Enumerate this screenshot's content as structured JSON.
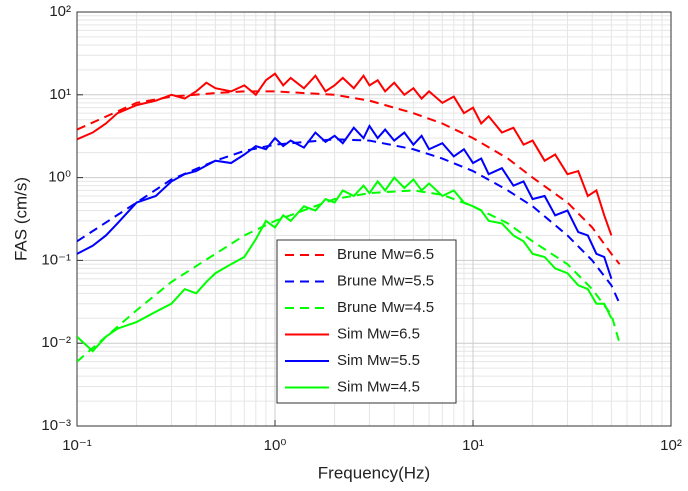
{
  "chart_data": {
    "type": "line",
    "xlabel": "Frequency(Hz)",
    "ylabel": "FAS (cm/s)",
    "xscale": "log",
    "yscale": "log",
    "grid": true,
    "minor_grid": true,
    "legend": "lower center",
    "xlim": [
      0.1,
      100
    ],
    "ylim": [
      0.001,
      100
    ],
    "xticks": [
      {
        "value": 0.1,
        "label": "10⁻¹"
      },
      {
        "value": 1,
        "label": "10⁰"
      },
      {
        "value": 10,
        "label": "10¹"
      },
      {
        "value": 100,
        "label": "10²"
      }
    ],
    "yticks": [
      {
        "value": 0.001,
        "label": "10⁻³"
      },
      {
        "value": 0.01,
        "label": "10⁻²"
      },
      {
        "value": 0.1,
        "label": "10⁻¹"
      },
      {
        "value": 1,
        "label": "10⁰"
      },
      {
        "value": 10,
        "label": "10¹"
      },
      {
        "value": 100,
        "label": "10²"
      }
    ],
    "series": [
      {
        "name": "Brune Mw=6.5",
        "color": "#ff0000",
        "linestyle": "dashed",
        "x": [
          0.1,
          0.2,
          0.3,
          0.5,
          0.7,
          1,
          2,
          3,
          5,
          7,
          10,
          15,
          20,
          30,
          40,
          50,
          55
        ],
        "values": [
          3.8,
          8,
          9.5,
          10.5,
          11,
          11,
          10,
          8.5,
          6,
          4.5,
          3,
          1.7,
          1,
          0.5,
          0.25,
          0.12,
          0.09
        ]
      },
      {
        "name": "Brune Mw=5.5",
        "color": "#0000ff",
        "linestyle": "dashed",
        "x": [
          0.1,
          0.2,
          0.3,
          0.5,
          0.7,
          1,
          2,
          3,
          5,
          7,
          10,
          15,
          20,
          30,
          40,
          50,
          55
        ],
        "values": [
          0.17,
          0.5,
          0.95,
          1.6,
          2.1,
          2.5,
          2.9,
          2.8,
          2.2,
          1.7,
          1.2,
          0.7,
          0.45,
          0.2,
          0.1,
          0.05,
          0.03
        ]
      },
      {
        "name": "Brune Mw=4.5",
        "color": "#00ff00",
        "linestyle": "dashed",
        "x": [
          0.1,
          0.2,
          0.3,
          0.5,
          0.7,
          1,
          2,
          3,
          5,
          7,
          10,
          15,
          20,
          30,
          40,
          50,
          55
        ],
        "values": [
          0.006,
          0.025,
          0.055,
          0.12,
          0.2,
          0.3,
          0.55,
          0.65,
          0.7,
          0.62,
          0.45,
          0.28,
          0.17,
          0.09,
          0.045,
          0.022,
          0.01
        ]
      },
      {
        "name": "Sim Mw=6.5",
        "color": "#ff0000",
        "linestyle": "solid",
        "x": [
          0.1,
          0.12,
          0.14,
          0.16,
          0.2,
          0.25,
          0.3,
          0.35,
          0.4,
          0.45,
          0.5,
          0.6,
          0.7,
          0.8,
          0.9,
          1,
          1.1,
          1.2,
          1.4,
          1.6,
          1.8,
          2,
          2.2,
          2.5,
          2.8,
          3,
          3.3,
          3.6,
          4,
          4.5,
          5,
          5.5,
          6,
          7,
          8,
          9,
          10,
          11,
          12,
          14,
          16,
          18,
          20,
          23,
          26,
          30,
          34,
          38,
          42,
          46,
          50
        ],
        "values": [
          2.9,
          3.5,
          4.5,
          6,
          7.5,
          8.5,
          10,
          9,
          11,
          14,
          12,
          11,
          13,
          10,
          15,
          18,
          13,
          16,
          12,
          17,
          11,
          13,
          16,
          12,
          17,
          13,
          15,
          11,
          14,
          10,
          12,
          9,
          11,
          8,
          9.5,
          6,
          7,
          4.5,
          5.5,
          3.5,
          4,
          2.5,
          2.8,
          1.6,
          1.9,
          1.1,
          1.2,
          0.6,
          0.7,
          0.35,
          0.2
        ]
      },
      {
        "name": "Sim Mw=5.5",
        "color": "#0000ff",
        "linestyle": "solid",
        "x": [
          0.1,
          0.12,
          0.14,
          0.16,
          0.2,
          0.25,
          0.3,
          0.35,
          0.4,
          0.45,
          0.5,
          0.6,
          0.7,
          0.8,
          0.9,
          1,
          1.1,
          1.2,
          1.4,
          1.6,
          1.8,
          2,
          2.2,
          2.5,
          2.8,
          3,
          3.3,
          3.6,
          4,
          4.5,
          5,
          5.5,
          6,
          7,
          8,
          9,
          10,
          11,
          12,
          14,
          16,
          18,
          20,
          23,
          26,
          30,
          34,
          38,
          42,
          46,
          50
        ],
        "values": [
          0.12,
          0.15,
          0.2,
          0.28,
          0.5,
          0.6,
          0.9,
          1.1,
          1.2,
          1.4,
          1.6,
          1.5,
          1.9,
          2.4,
          2.2,
          3,
          2.4,
          2.8,
          2.3,
          3.5,
          2.7,
          3.2,
          2.6,
          4,
          3,
          4.2,
          3,
          3.8,
          2.8,
          3.5,
          2.5,
          3.2,
          2.2,
          2.6,
          1.8,
          2.2,
          1.5,
          1.7,
          1.1,
          1.3,
          0.8,
          0.9,
          0.55,
          0.6,
          0.35,
          0.4,
          0.22,
          0.2,
          0.12,
          0.11,
          0.06
        ]
      },
      {
        "name": "Sim Mw=4.5",
        "color": "#00ff00",
        "linestyle": "solid",
        "x": [
          0.1,
          0.12,
          0.14,
          0.16,
          0.2,
          0.25,
          0.3,
          0.35,
          0.4,
          0.45,
          0.5,
          0.6,
          0.7,
          0.8,
          0.9,
          1,
          1.1,
          1.2,
          1.4,
          1.6,
          1.8,
          2,
          2.2,
          2.5,
          2.8,
          3,
          3.3,
          3.6,
          4,
          4.5,
          5,
          5.5,
          6,
          7,
          8,
          9,
          10,
          11,
          12,
          14,
          16,
          18,
          20,
          23,
          26,
          30,
          34,
          38,
          42,
          46,
          50
        ],
        "values": [
          0.012,
          0.008,
          0.012,
          0.015,
          0.018,
          0.024,
          0.03,
          0.045,
          0.04,
          0.055,
          0.07,
          0.09,
          0.11,
          0.18,
          0.3,
          0.25,
          0.35,
          0.3,
          0.45,
          0.4,
          0.55,
          0.5,
          0.7,
          0.6,
          0.8,
          0.65,
          0.9,
          0.7,
          1.0,
          0.75,
          0.95,
          0.7,
          0.85,
          0.6,
          0.7,
          0.5,
          0.45,
          0.4,
          0.3,
          0.28,
          0.2,
          0.17,
          0.12,
          0.11,
          0.08,
          0.07,
          0.05,
          0.045,
          0.03,
          0.03,
          0.02
        ]
      }
    ]
  }
}
